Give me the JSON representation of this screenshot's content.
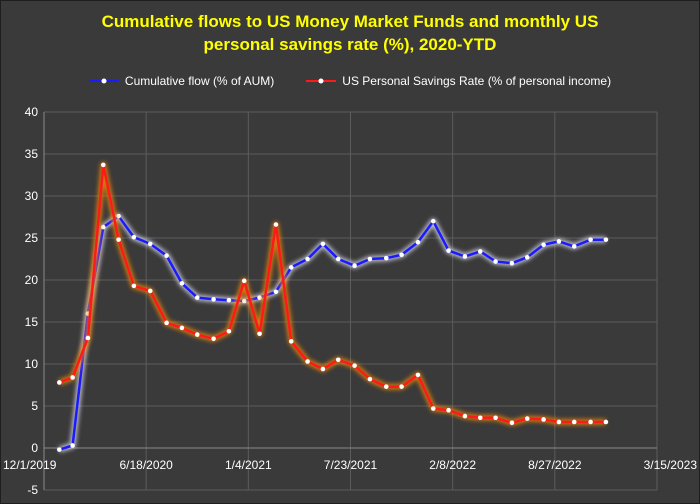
{
  "chart_data": {
    "type": "line",
    "title_line1": "Cumulative flows to US Money Market Funds and monthly US",
    "title_line2": "personal savings rate (%), 2020-YTD",
    "xlabel": "",
    "ylabel": "",
    "x_ticks": [
      {
        "label": "12/1/2019",
        "pos": 0
      },
      {
        "label": "6/18/2020",
        "pos": 1
      },
      {
        "label": "1/4/2021",
        "pos": 2
      },
      {
        "label": "7/23/2021",
        "pos": 3
      },
      {
        "label": "2/8/2022",
        "pos": 4
      },
      {
        "label": "8/27/2022",
        "pos": 5
      },
      {
        "label": "3/15/2023",
        "pos": 6
      }
    ],
    "xlim": [
      0,
      6
    ],
    "ylim": [
      -5,
      40
    ],
    "y_ticks": [
      -5,
      0,
      5,
      10,
      15,
      20,
      25,
      30,
      35,
      40
    ],
    "grid": true,
    "legend_position": "top-center",
    "series": [
      {
        "name": "Cumulative flow (% of AUM)",
        "color": "#1a1aff",
        "glow": "#e8e8ff",
        "x": [
          0.15,
          0.28,
          0.43,
          0.58,
          0.73,
          0.88,
          1.04,
          1.2,
          1.35,
          1.5,
          1.66,
          1.81,
          1.96,
          2.11,
          2.27,
          2.42,
          2.58,
          2.73,
          2.88,
          3.04,
          3.19,
          3.35,
          3.5,
          3.66,
          3.81,
          3.96,
          4.12,
          4.27,
          4.42,
          4.58,
          4.73,
          4.89,
          5.04,
          5.19,
          5.35,
          5.5
        ],
        "y": [
          -0.2,
          0.3,
          16.0,
          26.3,
          27.6,
          25.1,
          24.3,
          22.9,
          19.6,
          17.9,
          17.7,
          17.6,
          17.5,
          17.9,
          18.6,
          21.5,
          22.5,
          24.3,
          22.5,
          21.7,
          22.5,
          22.6,
          23.0,
          24.5,
          27.0,
          23.5,
          22.8,
          23.4,
          22.2,
          22.0,
          22.7,
          24.2,
          24.6,
          24.0,
          24.8,
          24.8
        ]
      },
      {
        "name": "US Personal Savings Rate (% of personal income)",
        "color": "#ff1a1a",
        "glow": "#ff8c00",
        "x": [
          0.15,
          0.28,
          0.43,
          0.58,
          0.73,
          0.88,
          1.04,
          1.2,
          1.35,
          1.5,
          1.66,
          1.81,
          1.96,
          2.11,
          2.27,
          2.42,
          2.58,
          2.73,
          2.88,
          3.04,
          3.19,
          3.35,
          3.5,
          3.66,
          3.81,
          3.96,
          4.12,
          4.27,
          4.42,
          4.58,
          4.73,
          4.89,
          5.04,
          5.19,
          5.35,
          5.5
        ],
        "y": [
          7.8,
          8.4,
          13.1,
          33.7,
          24.8,
          19.3,
          18.7,
          14.9,
          14.3,
          13.5,
          13.0,
          13.9,
          19.9,
          13.6,
          26.6,
          12.7,
          10.3,
          9.4,
          10.5,
          9.8,
          8.2,
          7.3,
          7.3,
          8.7,
          4.7,
          4.5,
          3.8,
          3.6,
          3.6,
          3.0,
          3.5,
          3.4,
          3.1,
          3.1,
          3.1,
          3.1
        ]
      }
    ]
  }
}
